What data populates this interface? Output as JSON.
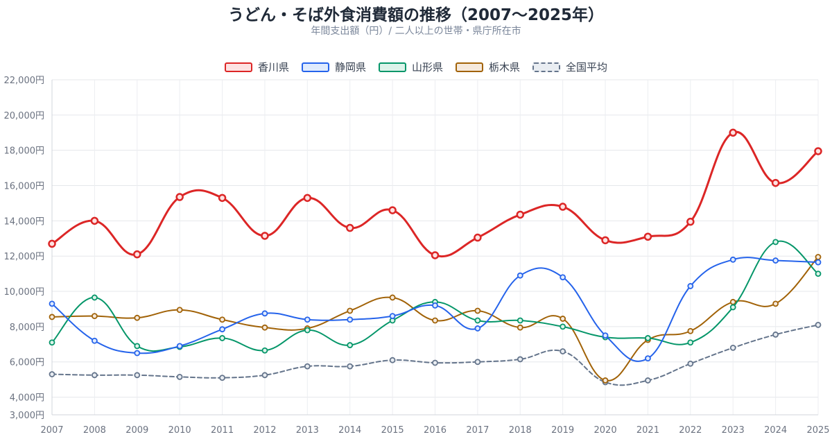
{
  "title": "うどん・そば外食消費額の推移（2007〜2025年）",
  "subtitle": "年間支出額（円）/ 二人以上の世帯・県庁所在市",
  "chart_data": {
    "type": "line",
    "x": [
      "2007",
      "2008",
      "2009",
      "2010",
      "2011",
      "2012",
      "2013",
      "2014",
      "2015",
      "2016",
      "2017",
      "2018",
      "2019",
      "2020",
      "2021",
      "2022",
      "2023",
      "2024",
      "2025"
    ],
    "ylim": [
      3000,
      22000
    ],
    "y_ticks": [
      3000,
      4000,
      6000,
      8000,
      10000,
      12000,
      14000,
      16000,
      18000,
      20000,
      22000
    ],
    "y_tick_labels": [
      "3,000円",
      "4,000円",
      "6,000円",
      "8,000円",
      "10,000円",
      "12,000円",
      "14,000円",
      "16,000円",
      "18,000円",
      "20,000円",
      "22,000円"
    ],
    "grid": true,
    "legend_position": "top-center",
    "series": [
      {
        "name": "香川県",
        "color": "#dc2626",
        "fill": "#fde2e2",
        "dashed": false,
        "emphasis": true,
        "values": [
          12700,
          14000,
          12100,
          15350,
          15300,
          13150,
          15300,
          13600,
          14600,
          12050,
          13050,
          14350,
          14800,
          12900,
          13100,
          13950,
          19000,
          16150,
          17950
        ]
      },
      {
        "name": "静岡県",
        "color": "#2563eb",
        "fill": "#e0ebfd",
        "dashed": false,
        "emphasis": false,
        "values": [
          9300,
          7200,
          6500,
          6900,
          7850,
          8750,
          8400,
          8400,
          8600,
          9200,
          7900,
          10900,
          10800,
          7500,
          6200,
          10300,
          11800,
          11750,
          11650
        ]
      },
      {
        "name": "山形県",
        "color": "#059669",
        "fill": "#dcf3ea",
        "dashed": false,
        "emphasis": false,
        "values": [
          7100,
          9650,
          6900,
          6850,
          7350,
          6650,
          7800,
          6950,
          8350,
          9400,
          8350,
          8350,
          8000,
          7400,
          7350,
          7100,
          9100,
          12800,
          11000
        ]
      },
      {
        "name": "栃木県",
        "color": "#a16207",
        "fill": "#f5e9dc",
        "dashed": false,
        "emphasis": false,
        "values": [
          8550,
          8600,
          8500,
          8950,
          8400,
          7950,
          7900,
          8900,
          9650,
          8350,
          8900,
          7950,
          8450,
          4950,
          7250,
          7750,
          9400,
          9300,
          11950
        ]
      },
      {
        "name": "全国平均",
        "color": "#64748b",
        "fill": "#e9edf2",
        "dashed": true,
        "emphasis": false,
        "values": [
          5300,
          5250,
          5250,
          5150,
          5100,
          5250,
          5750,
          5750,
          6100,
          5950,
          6000,
          6150,
          6600,
          4850,
          4950,
          5900,
          6800,
          7550,
          8100
        ]
      }
    ]
  }
}
